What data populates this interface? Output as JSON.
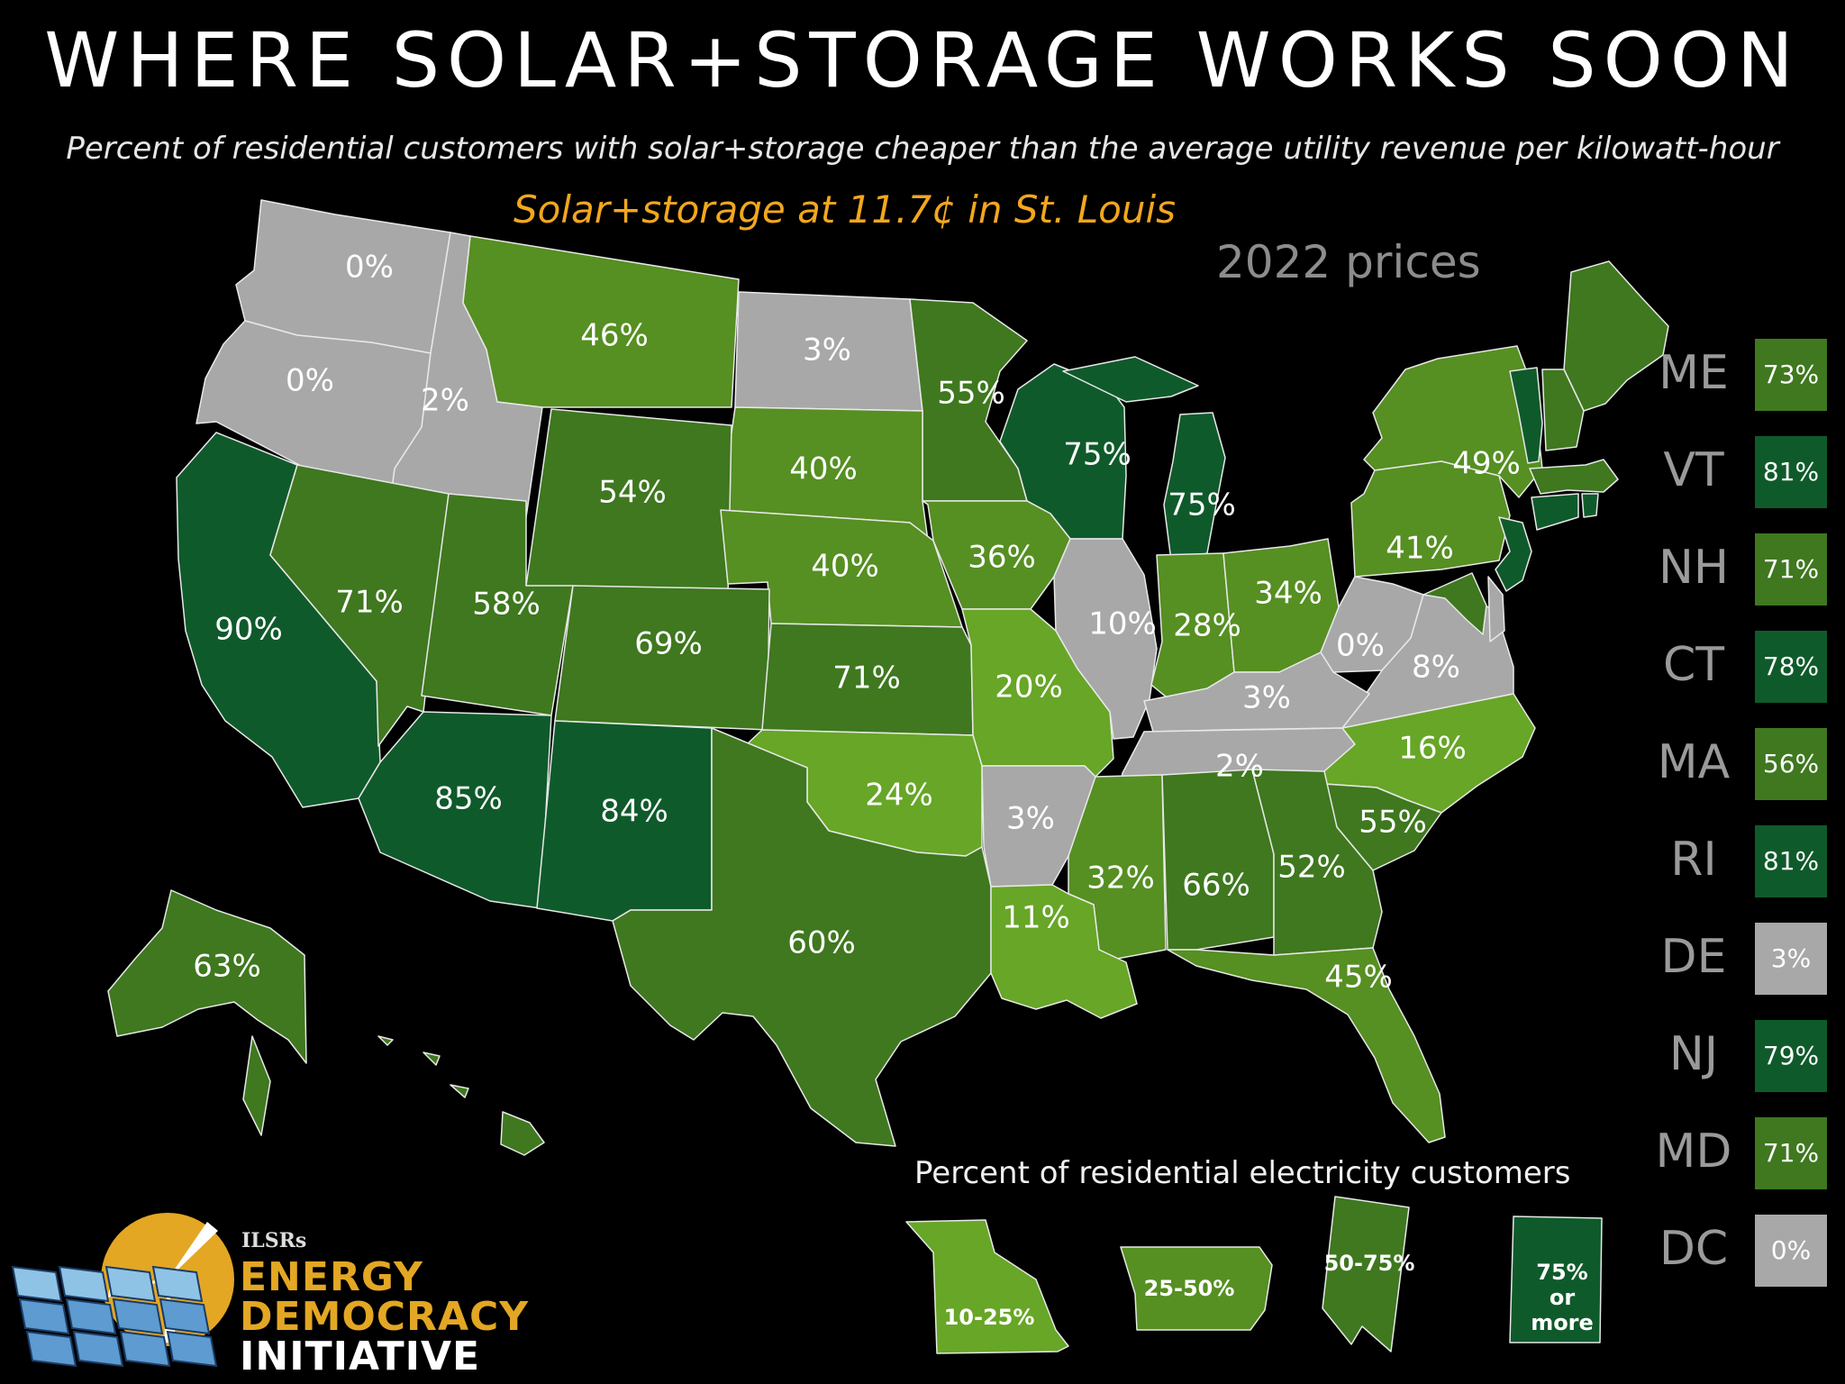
{
  "title": "WHERE SOLAR+STORAGE WORKS SOON",
  "subtitle": "Percent of residential customers with solar+storage cheaper than the average utility revenue per kilowatt-hour",
  "scenario": "Solar+storage at 11.7¢ in St. Louis",
  "price_year": "2022 prices",
  "colors": {
    "gray": "#a8a8a8",
    "tier_10_25": "#67a626",
    "tier_25_50": "#568f22",
    "tier_50_75": "#3f781f",
    "tier_75_plus": "#0f5a2b",
    "accent": "#f2a71e"
  },
  "states": [
    {
      "code": "WA",
      "value": "0%",
      "tier": "gray"
    },
    {
      "code": "OR",
      "value": "0%",
      "tier": "gray"
    },
    {
      "code": "ID",
      "value": "2%",
      "tier": "gray"
    },
    {
      "code": "MT",
      "value": "46%",
      "tier": "tier_25_50"
    },
    {
      "code": "ND",
      "value": "3%",
      "tier": "gray"
    },
    {
      "code": "MN",
      "value": "55%",
      "tier": "tier_50_75"
    },
    {
      "code": "WI",
      "value": "75%",
      "tier": "tier_75_plus"
    },
    {
      "code": "MI",
      "value": "75%",
      "tier": "tier_75_plus"
    },
    {
      "code": "NY",
      "value": "49%",
      "tier": "tier_25_50"
    },
    {
      "code": "SD",
      "value": "40%",
      "tier": "tier_25_50"
    },
    {
      "code": "WY",
      "value": "54%",
      "tier": "tier_50_75"
    },
    {
      "code": "NE",
      "value": "40%",
      "tier": "tier_25_50"
    },
    {
      "code": "IA",
      "value": "36%",
      "tier": "tier_25_50"
    },
    {
      "code": "CA",
      "value": "90%",
      "tier": "tier_75_plus"
    },
    {
      "code": "NV",
      "value": "71%",
      "tier": "tier_50_75"
    },
    {
      "code": "UT",
      "value": "58%",
      "tier": "tier_50_75"
    },
    {
      "code": "CO",
      "value": "69%",
      "tier": "tier_50_75"
    },
    {
      "code": "KS",
      "value": "71%",
      "tier": "tier_50_75"
    },
    {
      "code": "MO",
      "value": "20%",
      "tier": "tier_10_25"
    },
    {
      "code": "IL",
      "value": "10%",
      "tier": "gray"
    },
    {
      "code": "IN",
      "value": "28%",
      "tier": "tier_25_50"
    },
    {
      "code": "OH",
      "value": "34%",
      "tier": "tier_25_50"
    },
    {
      "code": "PA",
      "value": "41%",
      "tier": "tier_25_50"
    },
    {
      "code": "WV",
      "value": "0%",
      "tier": "gray"
    },
    {
      "code": "VA",
      "value": "8%",
      "tier": "gray"
    },
    {
      "code": "KY",
      "value": "3%",
      "tier": "gray"
    },
    {
      "code": "TN",
      "value": "2%",
      "tier": "gray"
    },
    {
      "code": "NC",
      "value": "16%",
      "tier": "tier_10_25"
    },
    {
      "code": "AZ",
      "value": "85%",
      "tier": "tier_75_plus"
    },
    {
      "code": "NM",
      "value": "84%",
      "tier": "tier_75_plus"
    },
    {
      "code": "OK",
      "value": "24%",
      "tier": "tier_10_25"
    },
    {
      "code": "AR",
      "value": "3%",
      "tier": "gray"
    },
    {
      "code": "SC",
      "value": "55%",
      "tier": "tier_50_75"
    },
    {
      "code": "MS",
      "value": "32%",
      "tier": "tier_25_50"
    },
    {
      "code": "AL",
      "value": "66%",
      "tier": "tier_50_75"
    },
    {
      "code": "GA",
      "value": "52%",
      "tier": "tier_50_75"
    },
    {
      "code": "TX",
      "value": "60%",
      "tier": "tier_50_75"
    },
    {
      "code": "LA",
      "value": "11%",
      "tier": "tier_10_25"
    },
    {
      "code": "FL",
      "value": "45%",
      "tier": "tier_25_50"
    },
    {
      "code": "AK",
      "value": "63%",
      "tier": "tier_50_75"
    },
    {
      "code": "HI",
      "value": "",
      "tier": "tier_50_75"
    }
  ],
  "northeast": [
    {
      "abbr": "ME",
      "value": "73%",
      "tier": "tier_50_75"
    },
    {
      "abbr": "VT",
      "value": "81%",
      "tier": "tier_75_plus"
    },
    {
      "abbr": "NH",
      "value": "71%",
      "tier": "tier_50_75"
    },
    {
      "abbr": "CT",
      "value": "78%",
      "tier": "tier_75_plus"
    },
    {
      "abbr": "MA",
      "value": "56%",
      "tier": "tier_50_75"
    },
    {
      "abbr": "RI",
      "value": "81%",
      "tier": "tier_75_plus"
    },
    {
      "abbr": "DE",
      "value": "3%",
      "tier": "gray"
    },
    {
      "abbr": "NJ",
      "value": "79%",
      "tier": "tier_75_plus"
    },
    {
      "abbr": "MD",
      "value": "71%",
      "tier": "tier_50_75"
    },
    {
      "abbr": "DC",
      "value": "0%",
      "tier": "gray"
    }
  ],
  "legend": {
    "title": "Percent of residential electricity customers",
    "items": [
      {
        "label": "10-25%",
        "tier": "tier_10_25"
      },
      {
        "label": "25-50%",
        "tier": "tier_25_50"
      },
      {
        "label": "50-75%",
        "tier": "tier_50_75"
      },
      {
        "label": "75% or more",
        "tier": "tier_75_plus"
      }
    ]
  },
  "logo": {
    "org": "ILSRs",
    "line1": "ENERGY",
    "line2": "DEMOCRACY",
    "line3": "INITIATIVE"
  }
}
